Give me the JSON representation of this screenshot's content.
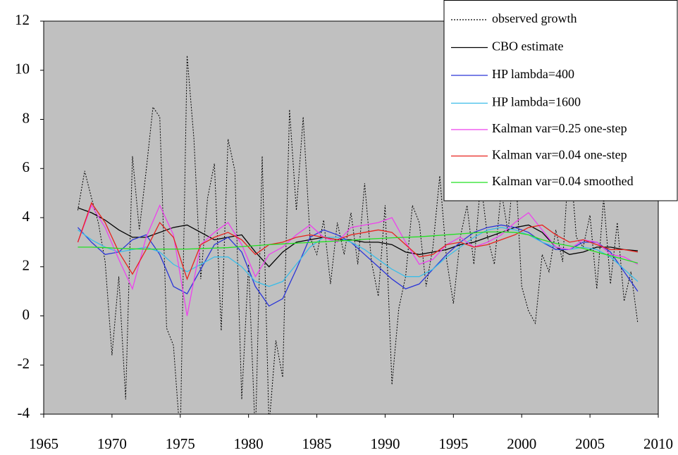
{
  "chart_data": {
    "type": "line",
    "xlim": [
      1965,
      2010
    ],
    "xticks": [
      1965,
      1970,
      1975,
      1980,
      1985,
      1990,
      1995,
      2000,
      2005,
      2010
    ],
    "ylim": [
      -4,
      12
    ],
    "yticks": [
      -4,
      -2,
      0,
      2,
      4,
      6,
      8,
      10,
      12
    ],
    "grid": false,
    "background": "#c0c0c0",
    "legend": "top-right",
    "series": [
      {
        "name": "observed growth",
        "color": "#000000",
        "line_style": "dotted",
        "x": [
          1967.5,
          1968,
          1968.5,
          1969,
          1969.5,
          1970,
          1970.5,
          1971,
          1971.5,
          1972,
          1972.5,
          1973,
          1973.5,
          1974,
          1974.5,
          1975,
          1975.5,
          1976,
          1976.5,
          1977,
          1977.5,
          1978,
          1978.5,
          1979,
          1979.5,
          1980,
          1980.5,
          1981,
          1981.5,
          1982,
          1982.5,
          1983,
          1983.5,
          1984,
          1984.5,
          1985,
          1985.5,
          1986,
          1986.5,
          1987,
          1987.5,
          1988,
          1988.5,
          1989,
          1989.5,
          1990,
          1990.5,
          1991,
          1991.5,
          1992,
          1992.5,
          1993,
          1993.5,
          1994,
          1994.5,
          1995,
          1995.5,
          1996,
          1996.5,
          1997,
          1997.5,
          1998,
          1998.5,
          1999,
          1999.5,
          2000,
          2000.5,
          2001,
          2001.5,
          2002,
          2002.5,
          2003,
          2003.5,
          2004,
          2004.5,
          2005,
          2005.5,
          2006,
          2006.5,
          2007,
          2007.5,
          2008,
          2008.5
        ],
        "values": [
          4.3,
          5.9,
          4.8,
          3.8,
          2.2,
          -1.6,
          1.6,
          -3.4,
          6.5,
          3.5,
          5.9,
          8.5,
          8.1,
          -0.5,
          -1.2,
          -5,
          10.6,
          7.2,
          1.5,
          4.8,
          6.2,
          -0.6,
          7.2,
          5.9,
          -3.4,
          2.1,
          -5,
          6.5,
          -4.5,
          -1,
          -2.5,
          8.4,
          4.3,
          8.1,
          3.2,
          2.5,
          3.9,
          1.3,
          3.8,
          2.5,
          4.2,
          2.1,
          5.4,
          2.2,
          0.8,
          4.5,
          -2.8,
          0.3,
          1.6,
          4.5,
          3.8,
          1.2,
          2.8,
          5.7,
          2.3,
          0.5,
          3.2,
          4.5,
          2.1,
          5.5,
          3.2,
          2.1,
          5.1,
          3.4,
          6.5,
          1.2,
          0.2,
          -0.3,
          2.5,
          1.8,
          3.5,
          2.2,
          6.8,
          3.2,
          2.8,
          4.1,
          1.1,
          4.8,
          1.3,
          3.8,
          0.6,
          1.8,
          -0.3
        ]
      },
      {
        "name": "CBO estimate",
        "color": "#000000",
        "line_style": "solid",
        "x": [
          1967.5,
          1968.5,
          1969.5,
          1970.5,
          1971.5,
          1972.5,
          1973.5,
          1974.5,
          1975.5,
          1976.5,
          1977.5,
          1978.5,
          1979.5,
          1980.5,
          1981.5,
          1982.5,
          1983.5,
          1984.5,
          1985.5,
          1986.5,
          1987.5,
          1988.5,
          1989.5,
          1990.5,
          1991.5,
          1992.5,
          1993.5,
          1994.5,
          1995.5,
          1996.5,
          1997.5,
          1998.5,
          1999.5,
          2000.5,
          2001.5,
          2002.5,
          2003.5,
          2004.5,
          2005.5,
          2006.5,
          2007.5,
          2008.5
        ],
        "values": [
          4.4,
          4.2,
          3.9,
          3.5,
          3.2,
          3.2,
          3.4,
          3.6,
          3.7,
          3.4,
          3.1,
          3.2,
          3.3,
          2.6,
          2.0,
          2.6,
          3.0,
          3.1,
          3.2,
          3.1,
          3.1,
          3.0,
          3.0,
          2.9,
          2.6,
          2.5,
          2.6,
          2.7,
          2.9,
          3.0,
          3.2,
          3.4,
          3.6,
          3.7,
          3.4,
          2.8,
          2.5,
          2.6,
          2.8,
          2.8,
          2.7,
          2.65
        ]
      },
      {
        "name": "HP lambda=400",
        "color": "#2a35d8",
        "line_style": "solid",
        "x": [
          1967.5,
          1968.5,
          1969.5,
          1970.5,
          1971.5,
          1972.5,
          1973.5,
          1974.5,
          1975.5,
          1976.5,
          1977.5,
          1978.5,
          1979.5,
          1980.5,
          1981.5,
          1982.5,
          1983.5,
          1984.5,
          1985.5,
          1986.5,
          1987.5,
          1988.5,
          1989.5,
          1990.5,
          1991.5,
          1992.5,
          1993.5,
          1994.5,
          1995.5,
          1996.5,
          1997.5,
          1998.5,
          1999.5,
          2000.5,
          2001.5,
          2002.5,
          2003.5,
          2004.5,
          2005.5,
          2006.5,
          2007.5,
          2008.5
        ],
        "values": [
          3.6,
          3.0,
          2.5,
          2.6,
          3.1,
          3.3,
          2.5,
          1.2,
          0.9,
          1.9,
          2.9,
          3.2,
          2.6,
          1.2,
          0.4,
          0.7,
          1.9,
          3.2,
          3.5,
          3.3,
          3.0,
          2.5,
          2.0,
          1.5,
          1.1,
          1.3,
          1.9,
          2.5,
          3.0,
          3.4,
          3.6,
          3.7,
          3.6,
          3.4,
          3.0,
          2.7,
          2.7,
          3.0,
          3.0,
          2.6,
          1.8,
          1.0
        ]
      },
      {
        "name": "HP lambda=1600",
        "color": "#3bbde8",
        "line_style": "solid",
        "x": [
          1967.5,
          1968.5,
          1969.5,
          1970.5,
          1971.5,
          1972.5,
          1973.5,
          1974.5,
          1975.5,
          1976.5,
          1977.5,
          1978.5,
          1979.5,
          1980.5,
          1981.5,
          1982.5,
          1983.5,
          1984.5,
          1985.5,
          1986.5,
          1987.5,
          1988.5,
          1989.5,
          1990.5,
          1991.5,
          1992.5,
          1993.5,
          1994.5,
          1995.5,
          1996.5,
          1997.5,
          1998.5,
          1999.5,
          2000.5,
          2001.5,
          2002.5,
          2003.5,
          2004.5,
          2005.5,
          2006.5,
          2007.5,
          2008.5
        ],
        "values": [
          3.5,
          3.1,
          2.8,
          2.6,
          2.7,
          2.8,
          2.6,
          2.1,
          1.8,
          2.1,
          2.4,
          2.4,
          2.0,
          1.4,
          1.2,
          1.4,
          2.1,
          2.8,
          3.2,
          3.2,
          3.0,
          2.7,
          2.3,
          1.9,
          1.6,
          1.6,
          1.9,
          2.4,
          2.8,
          3.2,
          3.5,
          3.6,
          3.5,
          3.3,
          3.0,
          2.8,
          2.7,
          2.8,
          2.7,
          2.4,
          1.9,
          1.4
        ]
      },
      {
        "name": "Kalman var=0.25 one-step",
        "color": "#ee40ee",
        "line_style": "solid",
        "x": [
          1967.5,
          1968.5,
          1969.5,
          1970.5,
          1971.5,
          1972.5,
          1973.5,
          1974.5,
          1975.5,
          1976.5,
          1977.5,
          1978.5,
          1979.5,
          1980.5,
          1981.5,
          1982.5,
          1983.5,
          1984.5,
          1985.5,
          1986.5,
          1987.5,
          1988.5,
          1989.5,
          1990.5,
          1991.5,
          1992.5,
          1993.5,
          1994.5,
          1995.5,
          1996.5,
          1997.5,
          1998.5,
          1999.5,
          2000.5,
          2001.5,
          2002.5,
          2003.5,
          2004.5,
          2005.5,
          2006.5,
          2007.5,
          2008.5
        ],
        "values": [
          3.0,
          4.5,
          3.6,
          2.3,
          1.1,
          3.2,
          4.5,
          3.3,
          0.0,
          2.9,
          3.4,
          3.8,
          2.9,
          1.6,
          2.5,
          2.8,
          3.3,
          3.7,
          3.2,
          3.0,
          3.6,
          3.7,
          3.8,
          4.0,
          3.0,
          2.1,
          2.3,
          2.9,
          3.2,
          2.8,
          3.0,
          3.3,
          3.8,
          4.2,
          3.5,
          2.8,
          2.7,
          3.1,
          3.0,
          2.5,
          2.4,
          2.1
        ]
      },
      {
        "name": "Kalman var=0.04 one-step",
        "color": "#e8221e",
        "line_style": "solid",
        "x": [
          1967.5,
          1968.5,
          1969.5,
          1970.5,
          1971.5,
          1972.5,
          1973.5,
          1974.5,
          1975.5,
          1976.5,
          1977.5,
          1978.5,
          1979.5,
          1980.5,
          1981.5,
          1982.5,
          1983.5,
          1984.5,
          1985.5,
          1986.5,
          1987.5,
          1988.5,
          1989.5,
          1990.5,
          1991.5,
          1992.5,
          1993.5,
          1994.5,
          1995.5,
          1996.5,
          1997.5,
          1998.5,
          1999.5,
          2000.5,
          2001.5,
          2002.5,
          2003.5,
          2004.5,
          2005.5,
          2006.5,
          2007.5,
          2008.5
        ],
        "values": [
          3.0,
          4.6,
          3.8,
          2.6,
          1.7,
          2.7,
          3.8,
          3.2,
          1.5,
          2.9,
          3.2,
          3.4,
          3.1,
          2.5,
          2.9,
          3.0,
          3.2,
          3.3,
          3.2,
          3.1,
          3.3,
          3.4,
          3.5,
          3.4,
          2.9,
          2.4,
          2.5,
          2.9,
          3.0,
          2.8,
          2.9,
          3.1,
          3.3,
          3.6,
          3.7,
          3.3,
          3.0,
          3.1,
          2.9,
          2.7,
          2.7,
          2.6
        ]
      },
      {
        "name": "Kalman var=0.04 smoothed",
        "color": "#22e022",
        "line_style": "solid",
        "x": [
          1967.5,
          1968.5,
          1969.5,
          1970.5,
          1971.5,
          1972.5,
          1973.5,
          1974.5,
          1975.5,
          1976.5,
          1977.5,
          1978.5,
          1979.5,
          1980.5,
          1981.5,
          1982.5,
          1983.5,
          1984.5,
          1985.5,
          1986.5,
          1987.5,
          1988.5,
          1989.5,
          1990.5,
          1991.5,
          1992.5,
          1993.5,
          1994.5,
          1995.5,
          1996.5,
          1997.5,
          1998.5,
          1999.5,
          2000.5,
          2001.5,
          2002.5,
          2003.5,
          2004.5,
          2005.5,
          2006.5,
          2007.5,
          2008.5
        ],
        "values": [
          2.8,
          2.8,
          2.78,
          2.75,
          2.73,
          2.72,
          2.72,
          2.72,
          2.72,
          2.74,
          2.76,
          2.78,
          2.82,
          2.86,
          2.9,
          2.93,
          2.96,
          2.99,
          3.02,
          3.05,
          3.08,
          3.12,
          3.15,
          3.18,
          3.2,
          3.22,
          3.26,
          3.3,
          3.34,
          3.38,
          3.42,
          3.42,
          3.4,
          3.3,
          3.1,
          2.95,
          2.85,
          2.75,
          2.6,
          2.45,
          2.3,
          2.15
        ]
      }
    ]
  }
}
